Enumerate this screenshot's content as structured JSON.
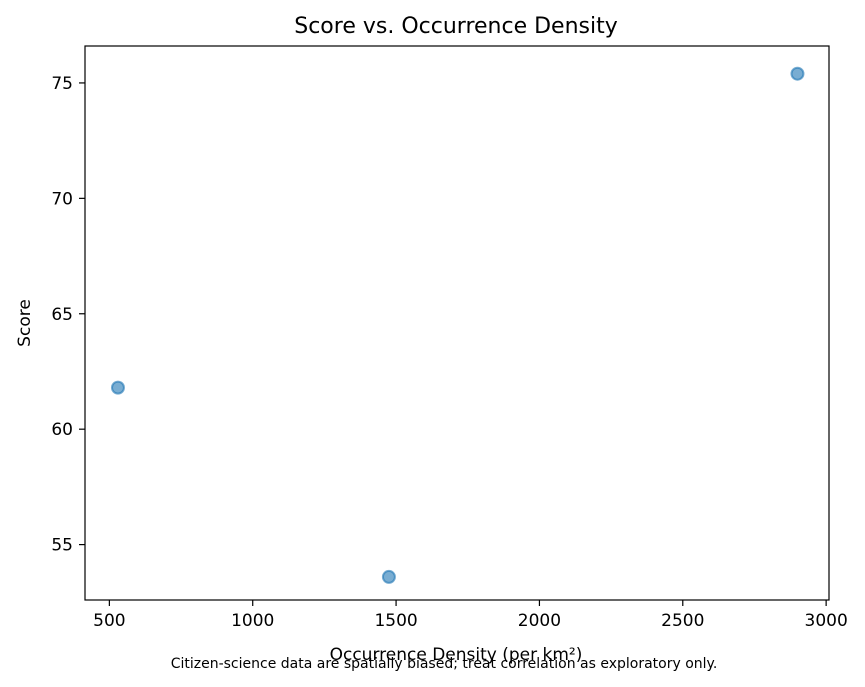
{
  "chart_data": {
    "type": "scatter",
    "title": "Score vs. Occurrence Density",
    "xlabel": "Occurrence Density (per km²)",
    "ylabel": "Score",
    "xlim": [
      415,
      3010
    ],
    "ylim": [
      52.6,
      76.6
    ],
    "xticks": [
      500,
      1000,
      1500,
      2000,
      2500,
      3000
    ],
    "yticks": [
      55,
      60,
      65,
      70,
      75
    ],
    "grid": false,
    "points": [
      {
        "x": 530,
        "y": 61.8
      },
      {
        "x": 1475,
        "y": 53.6
      },
      {
        "x": 2900,
        "y": 75.4
      }
    ],
    "point_color": "#1f77b4",
    "point_alpha": 0.6
  },
  "footnote": "Citizen-science data are spatially biased; treat correlation as exploratory only."
}
